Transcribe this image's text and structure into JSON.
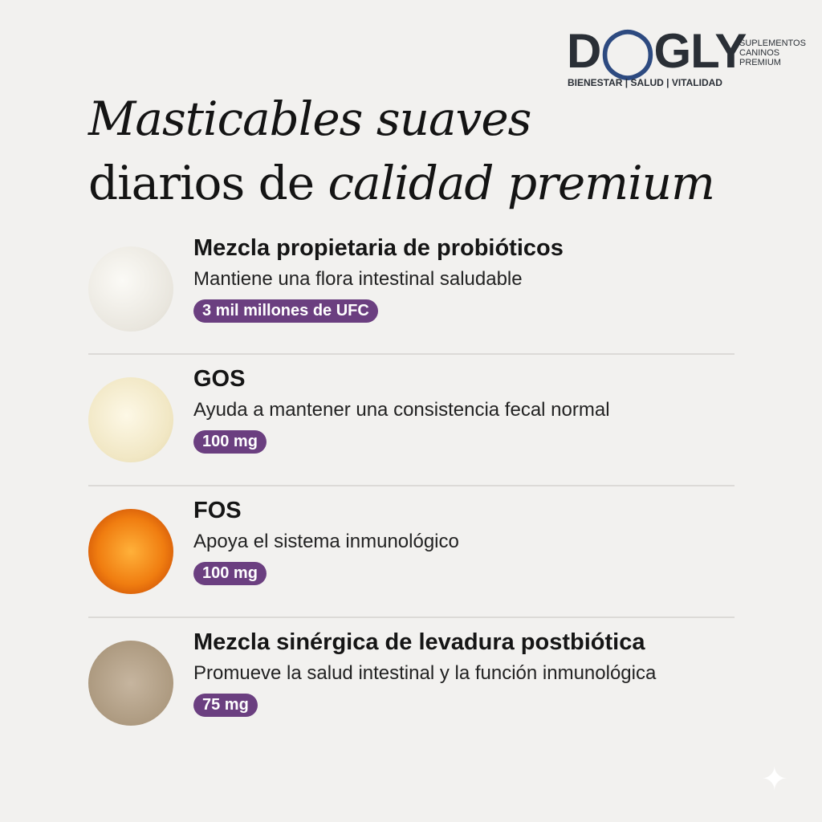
{
  "brand": {
    "logo_text": "DOGLY",
    "subtitle": [
      "SUPLEMENTOS",
      "CANINOS",
      "PREMIUM"
    ],
    "tagline": "BIENESTAR | SALUD | VITALIDAD"
  },
  "headline": {
    "line1": "Masticables suaves",
    "line2_regular": "diarios de ",
    "line2_italic": "calidad premium"
  },
  "colors": {
    "background": "#f2f1ef",
    "badge": "#6b3f80",
    "logo": "#2a2f36",
    "logo_accent": "#2d4a80"
  },
  "ingredients": [
    {
      "title": "Mezcla propietaria de probióticos",
      "description": "Mantiene una flora intestinal saludable",
      "amount": "3 mil millones de UFC",
      "image": "white-powder"
    },
    {
      "title": "GOS",
      "description": "Ayuda a mantener una consistencia fecal normal",
      "amount": "100 mg",
      "image": "cream-powder"
    },
    {
      "title": "FOS",
      "description": "Apoya el sistema inmunológico",
      "amount": "100 mg",
      "image": "chicory-root-slice"
    },
    {
      "title": "Mezcla sinérgica de levadura postbiótica",
      "description": "Promueve la salud intestinal y la función inmunológica",
      "amount": "75 mg",
      "image": "yeast-granules"
    }
  ]
}
